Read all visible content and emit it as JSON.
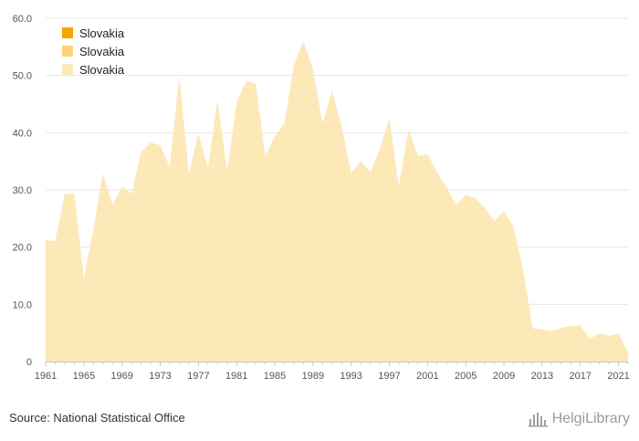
{
  "chart_data": {
    "type": "area",
    "title": "",
    "xlabel": "",
    "ylabel": "",
    "ylim": [
      0,
      60
    ],
    "yticks": [
      "0",
      "10.0",
      "20.0",
      "30.0",
      "40.0",
      "50.0",
      "60.0"
    ],
    "xticks": [
      "1961",
      "1965",
      "1969",
      "1973",
      "1977",
      "1981",
      "1985",
      "1989",
      "1993",
      "1997",
      "2001",
      "2005",
      "2009",
      "2013",
      "2017",
      "2021"
    ],
    "grid": "horizontal",
    "legend_position": "top-left",
    "legend": [
      {
        "label": "Slovakia",
        "color": "#f5a700"
      },
      {
        "label": "Slovakia",
        "color": "#fdd27a"
      },
      {
        "label": "Slovakia",
        "color": "#fde8b8"
      }
    ],
    "fill_color": "#fde8b8",
    "series": [
      {
        "x": [
          1961,
          1962,
          1963,
          1964,
          1965,
          1966,
          1967,
          1968,
          1969,
          1970,
          1971,
          1972,
          1973,
          1974,
          1975,
          1976,
          1977,
          1978,
          1979,
          1980,
          1981,
          1982,
          1983,
          1984,
          1985,
          1986,
          1987,
          1988,
          1989,
          1990,
          1991,
          1992,
          1993,
          1994,
          1995,
          1996,
          1997,
          1998,
          1999,
          2000,
          2001,
          2002,
          2003,
          2004,
          2005,
          2006,
          2007,
          2008,
          2009,
          2010,
          2011,
          2012,
          2013,
          2014,
          2015,
          2016,
          2017,
          2018,
          2019,
          2020,
          2021,
          2022
        ],
        "values": [
          21.3,
          21.0,
          29.3,
          29.3,
          14.6,
          23.1,
          32.9,
          27.4,
          30.6,
          29.3,
          36.6,
          38.3,
          37.8,
          34.0,
          49.9,
          32.8,
          39.9,
          33.8,
          45.7,
          33.3,
          45.3,
          49.0,
          48.6,
          35.9,
          39.3,
          41.6,
          51.8,
          56.0,
          51.1,
          41.6,
          47.4,
          41.0,
          33.0,
          35.0,
          33.1,
          37.1,
          42.5,
          30.6,
          40.6,
          35.9,
          36.2,
          33.1,
          30.4,
          27.4,
          29.1,
          28.6,
          26.8,
          24.6,
          26.3,
          23.6,
          16.2,
          5.8,
          5.6,
          5.3,
          5.9,
          6.2,
          6.3,
          4.0,
          4.9,
          4.5,
          4.9,
          1.6
        ]
      }
    ]
  },
  "footer": {
    "source": "Source: National Statistical Office",
    "brand": "HelgiLibrary"
  },
  "icons": {
    "brand": "library-logo-icon"
  }
}
